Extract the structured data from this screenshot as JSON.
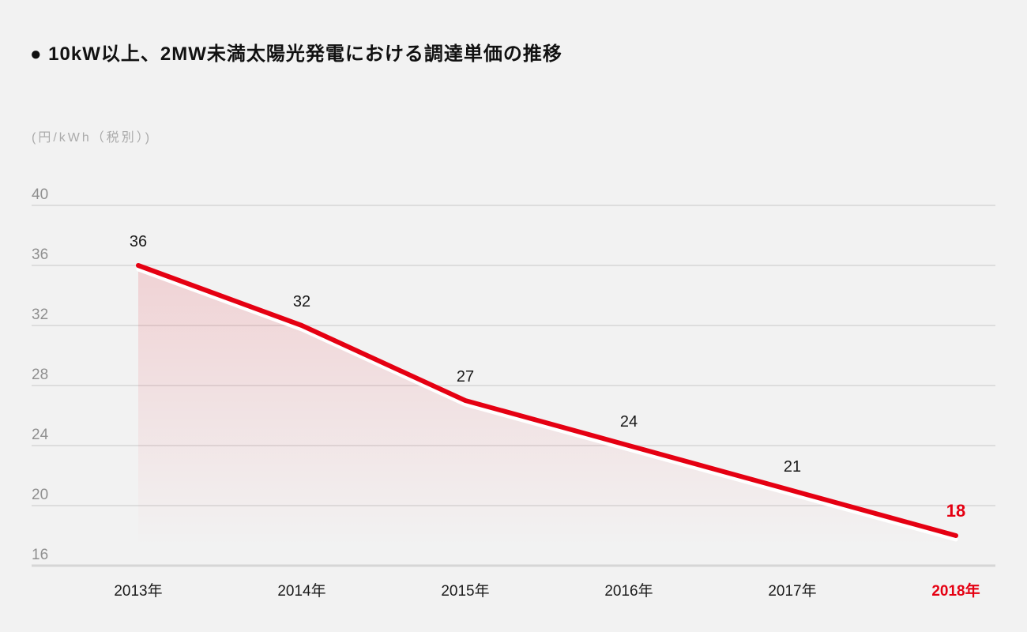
{
  "page": {
    "background_color": "#f2f2f2"
  },
  "header": {
    "title": "● 10kW以上、2MW未満太陽光発電における調達単価の推移"
  },
  "chart_data": {
    "type": "area",
    "title": "10kW以上、2MW未満太陽光発電における調達単価の推移",
    "unit_label": "(円/kWh（税別）)",
    "categories": [
      "2013年",
      "2014年",
      "2015年",
      "2016年",
      "2017年",
      "2018年"
    ],
    "values": [
      36,
      32,
      27,
      24,
      21,
      18
    ],
    "xlabel": "",
    "ylabel": "円/kWh（税別）",
    "ylim": [
      16,
      40
    ],
    "yticks": [
      16,
      20,
      24,
      28,
      32,
      36,
      40
    ],
    "grid": true,
    "legend": false,
    "highlight_last": true,
    "colors": {
      "line": "#e50012",
      "line_underlay": "#ffffff",
      "fill_top": "rgba(229, 0, 18, 0.16)",
      "fill_bottom": "rgba(229, 0, 18, 0)",
      "grid": "#dddddd",
      "grid_bottom": "#d6d6d6",
      "tick_text": "#8f8f8f",
      "category_text": "#1a1a1a",
      "value_text": "#1a1a1a",
      "highlight_text": "#e50012",
      "unit_text": "#ababab",
      "title_text": "#111111"
    }
  }
}
